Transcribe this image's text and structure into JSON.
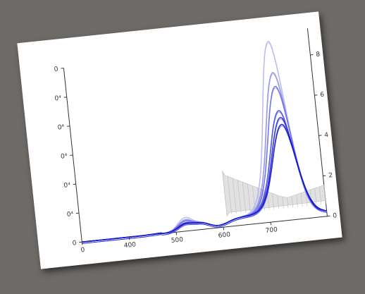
{
  "chart_data": {
    "type": "line",
    "xlim": [
      300,
      820
    ],
    "x_ticks": [
      "0",
      "400",
      "500",
      "600",
      "700"
    ],
    "y_left_ticks": [
      "0",
      "0⁴",
      "0⁴",
      "0⁴",
      "0⁴",
      "0⁴",
      "0"
    ],
    "y_right_ticks": [
      "0",
      "2",
      "4",
      "6",
      "8"
    ],
    "ylim_left": [
      0,
      1
    ],
    "series_blue": [
      {
        "color": "#b6b8f2",
        "peak_x": 735,
        "peak_y": 0.98
      },
      {
        "color": "#8d8fea",
        "peak_x": 738,
        "peak_y": 0.8
      },
      {
        "color": "#6d6fe2",
        "peak_x": 740,
        "peak_y": 0.72
      },
      {
        "color": "#4a4cde",
        "peak_x": 742,
        "peak_y": 0.58
      },
      {
        "color": "#2c2ed8",
        "peak_x": 744,
        "peak_y": 0.54
      },
      {
        "color": "#1416d0",
        "peak_x": 745,
        "peak_y": 0.5
      }
    ],
    "gray_band": {
      "color": "#c8c8c8",
      "x_start": 610,
      "x_end": 820
    }
  }
}
